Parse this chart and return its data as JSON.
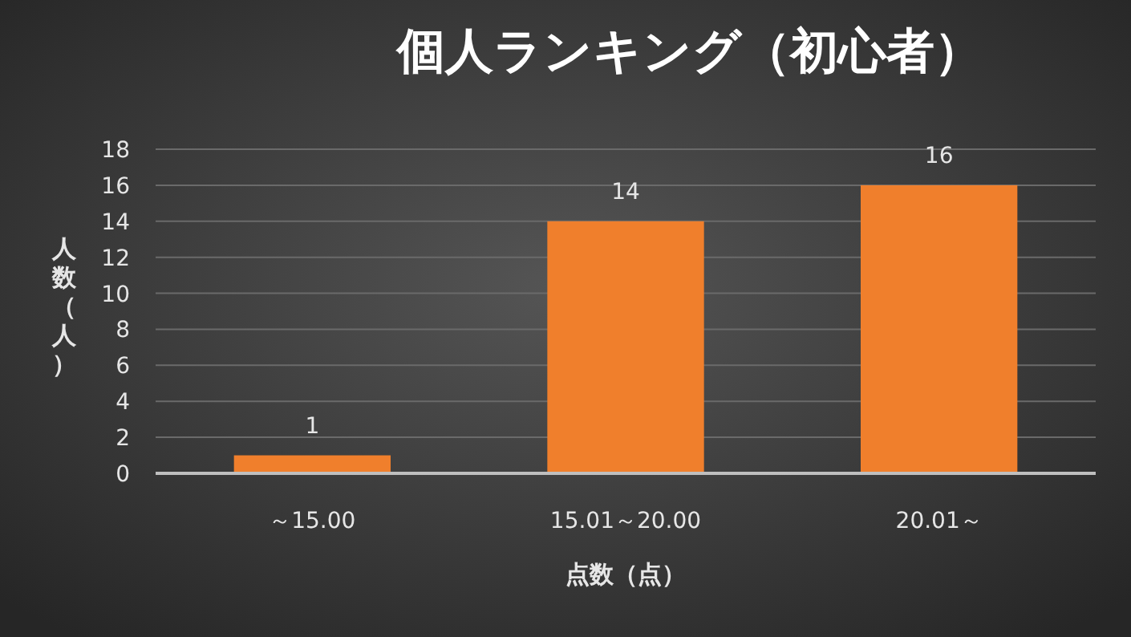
{
  "chart_data": {
    "type": "bar",
    "title": "個人ランキング（初心者）",
    "xlabel": "点数（点）",
    "ylabel": "人数（人）",
    "categories": [
      "～15.00",
      "15.01～20.00",
      "20.01～"
    ],
    "values": [
      1,
      14,
      16
    ],
    "color": "#f07f2c",
    "ylim": [
      0,
      18
    ],
    "yticks": [
      0,
      2,
      4,
      6,
      8,
      10,
      12,
      14,
      16,
      18
    ],
    "grid": "y",
    "data_labels": true
  }
}
